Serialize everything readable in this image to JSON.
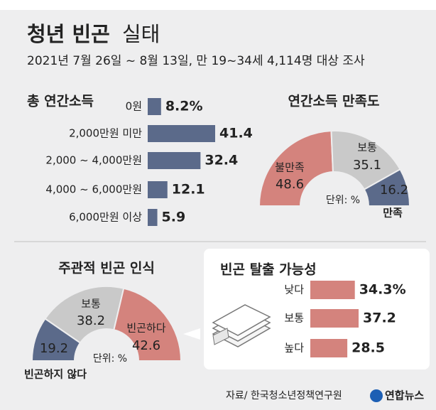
{
  "header": {
    "title": "청년 빈곤",
    "title_suffix": "실태",
    "subtitle": "2021년 7월 26일 ~ 8월 13일, 만 19~34세 4,114명 대상 조사"
  },
  "chart_data": [
    {
      "type": "hbar",
      "title": "총 연간소득",
      "categories": [
        "0원",
        "2,000만원 미만",
        "2,000 ~ 4,000만원",
        "4,000 ~ 6,000만원",
        "6,000만원 이상"
      ],
      "values": [
        8.2,
        41.4,
        32.4,
        12.1,
        5.9
      ],
      "value_labels": [
        "8.2%",
        "41.4",
        "32.4",
        "12.1",
        "5.9"
      ],
      "color": "#5b6a8a"
    },
    {
      "type": "halfpie",
      "title": "연간소득 만족도",
      "unit_label": "단위: %",
      "categories": [
        "불만족",
        "보통",
        "만족"
      ],
      "values": [
        48.6,
        35.1,
        16.2
      ],
      "colors": [
        "#d4837d",
        "#c9c9c9",
        "#5b6a8a"
      ]
    },
    {
      "type": "halfpie",
      "title": "주관적 빈곤 인식",
      "unit_label": "단위: %",
      "categories": [
        "빈곤하지 않다",
        "보통",
        "빈곤하다"
      ],
      "values": [
        19.2,
        38.2,
        42.6
      ],
      "colors": [
        "#5b6a8a",
        "#c9c9c9",
        "#d4837d"
      ]
    },
    {
      "type": "hbar",
      "title": "빈곤 탈출 가능성",
      "categories": [
        "낮다",
        "보통",
        "높다"
      ],
      "values": [
        34.3,
        37.2,
        28.5
      ],
      "value_labels": [
        "34.3%",
        "37.2",
        "28.5"
      ],
      "color": "#d4837d"
    }
  ],
  "footer": {
    "source": "자료/ 한국청소년정책연구원",
    "logo": "연합뉴스"
  }
}
